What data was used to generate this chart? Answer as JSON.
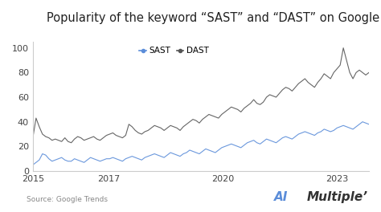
{
  "title": "Popularity of the keyword “SAST” and “DAST” on Google",
  "source_text": "Source: Google Trends",
  "brand_text_ai": "AI",
  "brand_text_multiple": "Multiple",
  "brand_superscript": "’",
  "xlim": [
    2015.0,
    2023.83
  ],
  "ylim": [
    0,
    105
  ],
  "yticks": [
    0,
    20,
    40,
    60,
    80,
    100
  ],
  "xtick_labels": [
    "2015",
    "2017",
    "2020",
    "2023"
  ],
  "xtick_positions": [
    2015,
    2017,
    2020,
    2023
  ],
  "sast_color": "#5b8dd9",
  "dast_color": "#555555",
  "background_color": "#ffffff",
  "title_fontsize": 10.5,
  "legend_fontsize": 7.5,
  "axis_fontsize": 8,
  "source_fontsize": 6.5,
  "brand_fontsize": 11,
  "sast_label": "SAST",
  "dast_label": "DAST",
  "sast_data": [
    5,
    7,
    9,
    14,
    13,
    10,
    8,
    9,
    10,
    11,
    9,
    8,
    8,
    10,
    9,
    8,
    7,
    9,
    11,
    10,
    9,
    8,
    9,
    10,
    10,
    11,
    10,
    9,
    8,
    10,
    11,
    12,
    11,
    10,
    9,
    11,
    12,
    13,
    14,
    13,
    12,
    11,
    13,
    15,
    14,
    13,
    12,
    14,
    15,
    17,
    16,
    15,
    14,
    16,
    18,
    17,
    16,
    15,
    17,
    19,
    20,
    21,
    22,
    21,
    20,
    19,
    21,
    23,
    24,
    25,
    23,
    22,
    24,
    26,
    25,
    24,
    23,
    25,
    27,
    28,
    27,
    26,
    28,
    30,
    31,
    32,
    31,
    30,
    29,
    31,
    32,
    34,
    33,
    32,
    33,
    35,
    36,
    37,
    36,
    35,
    34,
    36,
    38,
    40,
    39,
    38
  ],
  "dast_data": [
    27,
    43,
    36,
    30,
    28,
    27,
    25,
    26,
    25,
    24,
    27,
    24,
    23,
    26,
    28,
    27,
    25,
    26,
    27,
    28,
    26,
    25,
    27,
    29,
    30,
    31,
    29,
    28,
    27,
    29,
    38,
    36,
    33,
    31,
    30,
    32,
    33,
    35,
    37,
    36,
    35,
    33,
    35,
    37,
    36,
    35,
    33,
    36,
    38,
    40,
    42,
    41,
    39,
    42,
    44,
    46,
    45,
    44,
    43,
    46,
    48,
    50,
    52,
    51,
    50,
    48,
    51,
    53,
    55,
    58,
    55,
    54,
    56,
    60,
    62,
    61,
    60,
    63,
    66,
    68,
    67,
    65,
    68,
    71,
    73,
    75,
    72,
    70,
    68,
    72,
    75,
    79,
    77,
    75,
    80,
    83,
    86,
    100,
    90,
    80,
    75,
    80,
    82,
    80,
    78,
    80
  ],
  "n_points": 106
}
